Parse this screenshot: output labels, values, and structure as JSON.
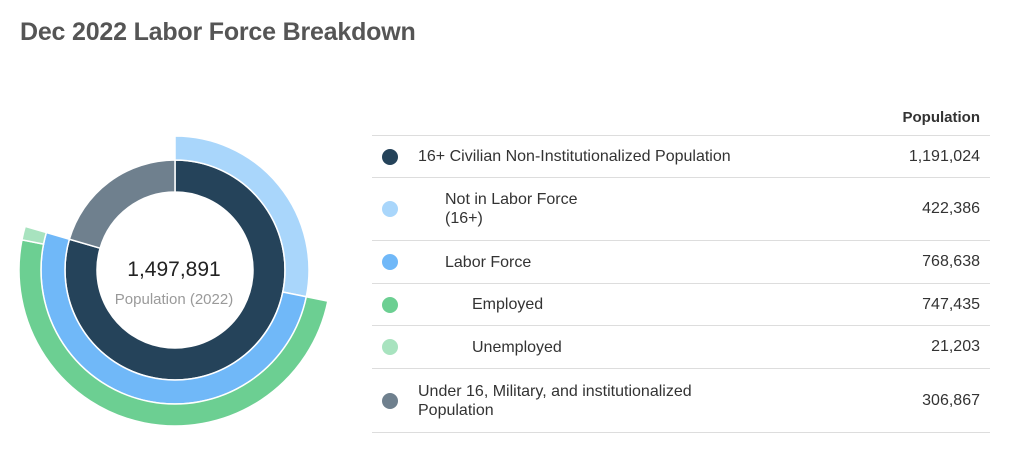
{
  "header": {
    "title": "Dec 2022 Labor Force Breakdown"
  },
  "center": {
    "value": "1,497,891",
    "label": "Population (2022)"
  },
  "table": {
    "column_header": "Population",
    "rows": [
      {
        "label": "16+ Civilian Non-Institutionalized Population",
        "value": "1,191,024",
        "color": "#25435A"
      },
      {
        "label": "Not in Labor Force",
        "label2": "(16+)",
        "value": "422,386",
        "color": "#A9D6FB"
      },
      {
        "label": "Labor Force",
        "value": "768,638",
        "color": "#70B8F8"
      },
      {
        "label": "Employed",
        "value": "747,435",
        "color": "#6CCF92"
      },
      {
        "label": "Unemployed",
        "value": "21,203",
        "color": "#A8E3BF"
      },
      {
        "label": "Under 16, Military, and institutionalized",
        "label2": "Population",
        "value": "306,867",
        "color": "#6F808E"
      }
    ]
  },
  "chart_data": {
    "type": "pie",
    "total": 1497891,
    "rings": [
      {
        "ring": "inner",
        "slices": [
          {
            "name": "16+ Civilian Non-Institutionalized Population",
            "value": 1191024,
            "color": "#25435A"
          },
          {
            "name": "Under 16, Military, and institutionalized Population",
            "value": 306867,
            "color": "#6F808E"
          }
        ]
      },
      {
        "ring": "middle",
        "slices": [
          {
            "name": "Not in Labor Force (16+)",
            "value": 422386,
            "color": "#A9D6FB"
          },
          {
            "name": "Labor Force",
            "value": 768638,
            "color": "#70B8F8"
          }
        ]
      },
      {
        "ring": "outer",
        "slices": [
          {
            "name": "Employed",
            "value": 747435,
            "color": "#6CCF92"
          },
          {
            "name": "Unemployed",
            "value": 21203,
            "color": "#A8E3BF"
          }
        ]
      }
    ]
  }
}
